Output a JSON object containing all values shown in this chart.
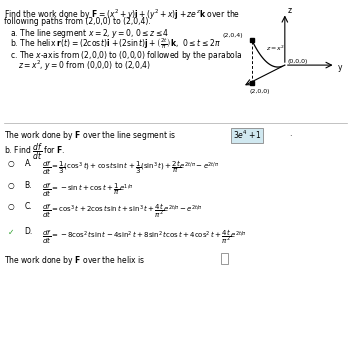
{
  "bg_color": "#ffffff",
  "text_color": "#000000",
  "answer_box_color": "#d0e8f0",
  "correct_check_color": "#2ca02c",
  "fs_main": 5.5,
  "fs_small": 5.0,
  "line1": "Find the work done by $\\mathbf{F} = (x^2 + y)\\mathbf{i} + (y^2 + x)\\mathbf{j} + ze^z\\mathbf{k}$ over the",
  "line2": "following paths from (2,0,0) to (2,0,4).",
  "part_a": "a. The line segment $x = 2$, $y = 0$, $0 \\leq z \\leq 4$",
  "part_b": "b. The helix $\\mathbf{r}(t) = (2\\cos t)\\mathbf{i} + (2\\sin t)\\mathbf{j} + \\left(\\frac{2t}{\\pi}\\right)\\mathbf{k}$,  $0 \\leq t \\leq 2\\pi$",
  "part_c1": "c. The $x$-axis from (2,0,0) to (0,0,0) followed by the parabola",
  "part_c2": "$z = x^2$, $y = 0$ from (0,0,0) to (2,0,4)",
  "ans_seg1": "The work done by $\\mathbf{F}$ over the line segment is",
  "ans_seg2": "$3e^4 + 1$",
  "find_df": "b. Find $\\dfrac{df}{dt}$ for $\\mathbf{F}$.",
  "optA_label": "A.",
  "optA_text": "$\\dfrac{df}{dt} = \\dfrac{1}{3}\\left(\\cos^3 t\\right) + \\cos t \\sin t + \\dfrac{1}{3}\\left(\\sin^3 t\\right) + \\dfrac{2t}{\\pi}e^{2t/\\pi} - e^{2t/\\pi}$",
  "optB_label": "B.",
  "optB_text": "$\\dfrac{df}{dt} = -\\sin t + \\cos t + \\dfrac{1}{\\pi}e^{1/\\pi}$",
  "optC_label": "C.",
  "optC_text": "$\\dfrac{df}{dt} = \\cos^3 t + 2\\cos t \\sin t + \\sin^3 t + \\dfrac{4t}{\\pi^2}e^{2t/\\pi} - e^{2t/\\pi}$",
  "optD_label": "D.",
  "optD_text": "$\\dfrac{df}{dt} = -8\\cos^2 t \\sin t - 4\\sin^2 t + 8\\sin^2 t \\cos t + 4\\cos^2 t + \\dfrac{4t}{\\pi^2}e^{2t/\\pi}$",
  "ans_helix": "The work done by $\\mathbf{F}$ over the helix is"
}
